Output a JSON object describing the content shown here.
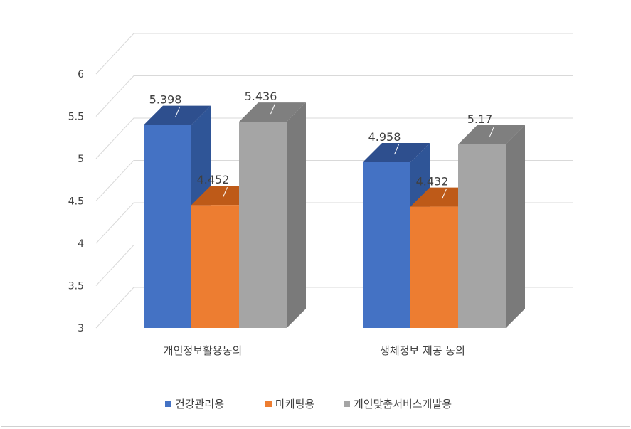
{
  "chart_data": {
    "type": "bar",
    "categories": [
      "개인정보활용동의",
      "생체정보 제공 동의"
    ],
    "series": [
      {
        "name": "건강관리용",
        "values": [
          5.398,
          4.958
        ],
        "labels": [
          "5.398",
          "4.958"
        ]
      },
      {
        "name": "마케팅용",
        "values": [
          4.452,
          4.432
        ],
        "labels": [
          "4.452",
          "4.432"
        ]
      },
      {
        "name": "개인맞춤서비스개발용",
        "values": [
          5.436,
          5.17
        ],
        "labels": [
          "5.436",
          "5.17"
        ]
      }
    ],
    "y_ticks": [
      "3",
      "3.5",
      "4",
      "4.5",
      "5",
      "5.5",
      "6"
    ],
    "ylim": [
      3,
      6
    ],
    "grid": true,
    "legend_position": "bottom",
    "style": "3d-clustered-column"
  },
  "colors": {
    "series": [
      "#4472C4",
      "#ED7D31",
      "#A5A5A5"
    ],
    "side": [
      "#2F5597",
      "#B85A1A",
      "#7A7A7A"
    ],
    "top": [
      "#2E4F8E",
      "#BE5A18",
      "#7F7F7F"
    ],
    "grid": "#d9d9d9",
    "text": "#404040"
  }
}
